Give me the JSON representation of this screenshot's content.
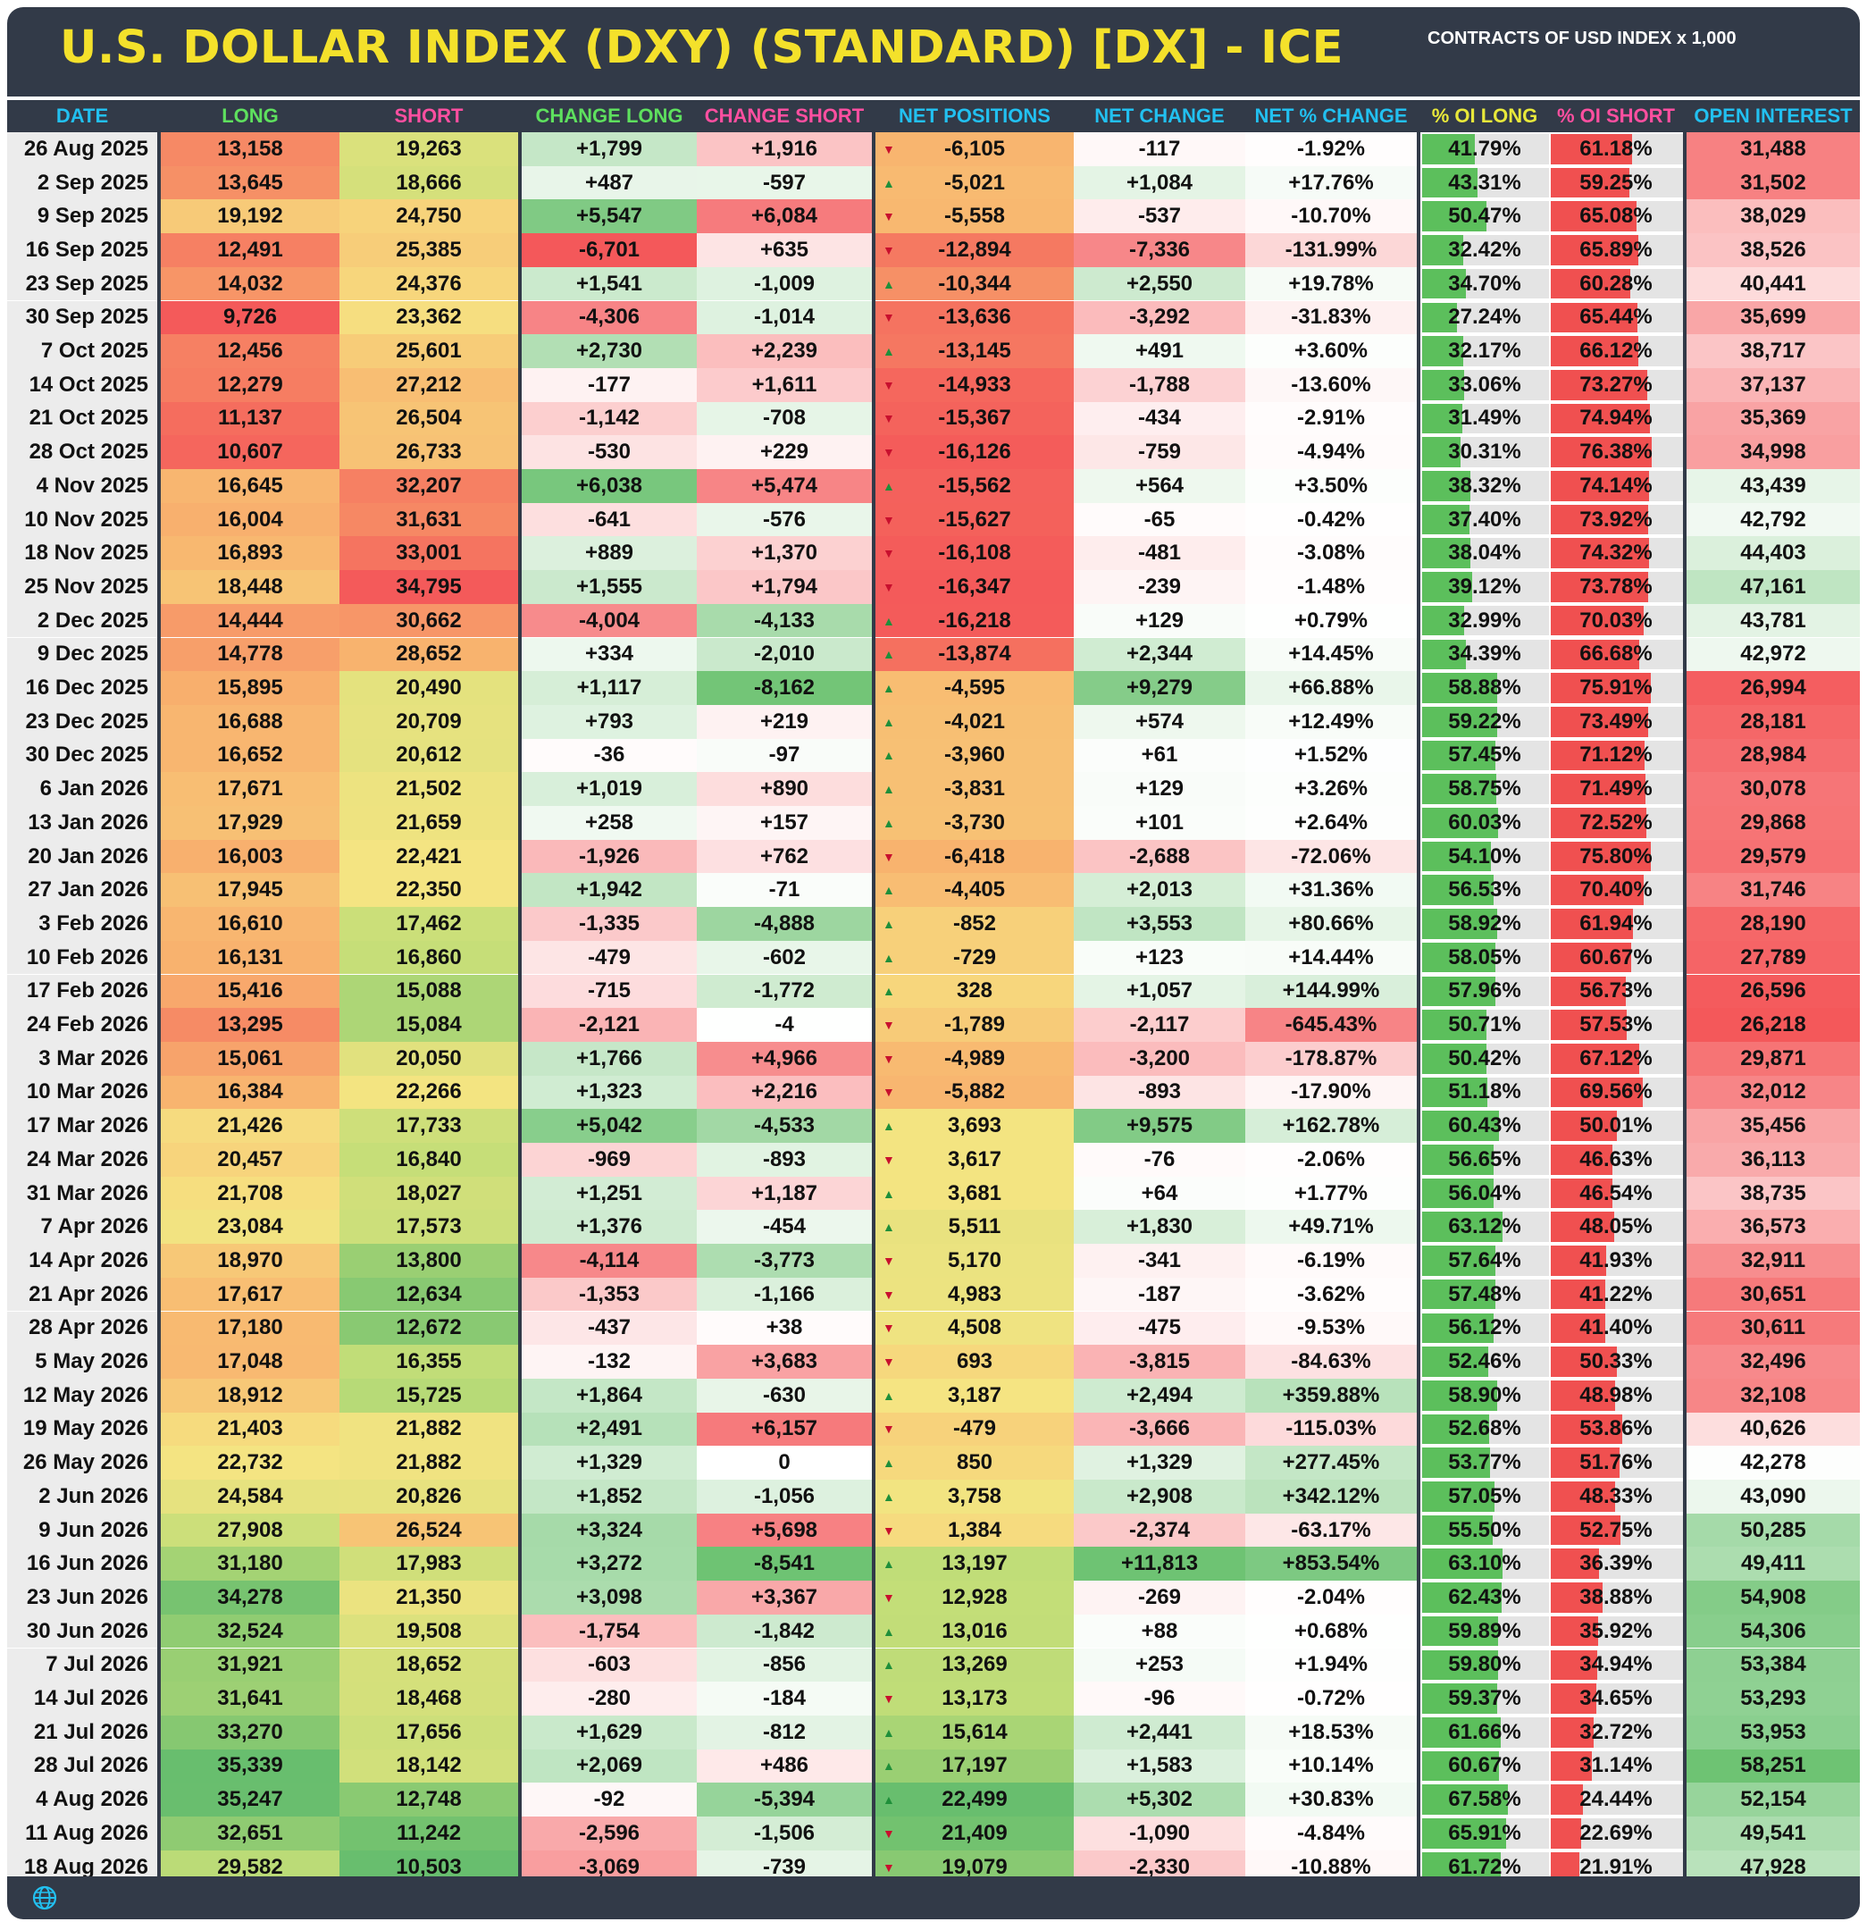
{
  "title": "U.S. DOLLAR INDEX (DXY) (STANDARD) [DX] - ICE",
  "subtitle": "CONTRACTS OF USD INDEX x 1,000",
  "headers": {
    "date": "DATE",
    "long": "LONG",
    "short": "SHORT",
    "change_long": "CHANGE LONG",
    "change_short": "CHANGE SHORT",
    "net_positions": "NET POSITIONS",
    "net_change": "NET CHANGE",
    "net_pct_change": "NET % CHANGE",
    "oi_long": "% OI LONG",
    "oi_short": "% OI SHORT",
    "open_interest": "OPEN INTEREST"
  },
  "colors": {
    "header_bg": "#323a48",
    "title": "#f4e12b",
    "header_blue": "#22c0f0",
    "header_yellow": "#e8e83a",
    "header_pink": "#ff4fa0",
    "header_green": "#5ee05e",
    "up_arrow": "#1f8f3a",
    "down_arrow": "#c8102e",
    "bar_green": "#5cbf5c",
    "bar_red": "#f05050"
  },
  "footer_icon": "globe-icon",
  "rows": [
    [
      "26 Aug 2025",
      "13,158",
      "19,263",
      "+1,799",
      "+1,916",
      "down",
      "-6,105",
      "-117",
      "-1.92%",
      "41.79%",
      "61.18%",
      "31,488"
    ],
    [
      "2 Sep 2025",
      "13,645",
      "18,666",
      "+487",
      "-597",
      "up",
      "-5,021",
      "+1,084",
      "+17.76%",
      "43.31%",
      "59.25%",
      "31,502"
    ],
    [
      "9 Sep 2025",
      "19,192",
      "24,750",
      "+5,547",
      "+6,084",
      "down",
      "-5,558",
      "-537",
      "-10.70%",
      "50.47%",
      "65.08%",
      "38,029"
    ],
    [
      "16 Sep 2025",
      "12,491",
      "25,385",
      "-6,701",
      "+635",
      "down",
      "-12,894",
      "-7,336",
      "-131.99%",
      "32.42%",
      "65.89%",
      "38,526"
    ],
    [
      "23 Sep 2025",
      "14,032",
      "24,376",
      "+1,541",
      "-1,009",
      "up",
      "-10,344",
      "+2,550",
      "+19.78%",
      "34.70%",
      "60.28%",
      "40,441"
    ],
    [
      "30 Sep 2025",
      "9,726",
      "23,362",
      "-4,306",
      "-1,014",
      "down",
      "-13,636",
      "-3,292",
      "-31.83%",
      "27.24%",
      "65.44%",
      "35,699"
    ],
    [
      "7 Oct 2025",
      "12,456",
      "25,601",
      "+2,730",
      "+2,239",
      "up",
      "-13,145",
      "+491",
      "+3.60%",
      "32.17%",
      "66.12%",
      "38,717"
    ],
    [
      "14 Oct 2025",
      "12,279",
      "27,212",
      "-177",
      "+1,611",
      "down",
      "-14,933",
      "-1,788",
      "-13.60%",
      "33.06%",
      "73.27%",
      "37,137"
    ],
    [
      "21 Oct 2025",
      "11,137",
      "26,504",
      "-1,142",
      "-708",
      "down",
      "-15,367",
      "-434",
      "-2.91%",
      "31.49%",
      "74.94%",
      "35,369"
    ],
    [
      "28 Oct 2025",
      "10,607",
      "26,733",
      "-530",
      "+229",
      "down",
      "-16,126",
      "-759",
      "-4.94%",
      "30.31%",
      "76.38%",
      "34,998"
    ],
    [
      "4 Nov 2025",
      "16,645",
      "32,207",
      "+6,038",
      "+5,474",
      "up",
      "-15,562",
      "+564",
      "+3.50%",
      "38.32%",
      "74.14%",
      "43,439"
    ],
    [
      "10 Nov 2025",
      "16,004",
      "31,631",
      "-641",
      "-576",
      "down",
      "-15,627",
      "-65",
      "-0.42%",
      "37.40%",
      "73.92%",
      "42,792"
    ],
    [
      "18 Nov 2025",
      "16,893",
      "33,001",
      "+889",
      "+1,370",
      "down",
      "-16,108",
      "-481",
      "-3.08%",
      "38.04%",
      "74.32%",
      "44,403"
    ],
    [
      "25 Nov 2025",
      "18,448",
      "34,795",
      "+1,555",
      "+1,794",
      "down",
      "-16,347",
      "-239",
      "-1.48%",
      "39.12%",
      "73.78%",
      "47,161"
    ],
    [
      "2 Dec 2025",
      "14,444",
      "30,662",
      "-4,004",
      "-4,133",
      "up",
      "-16,218",
      "+129",
      "+0.79%",
      "32.99%",
      "70.03%",
      "43,781"
    ],
    [
      "9 Dec 2025",
      "14,778",
      "28,652",
      "+334",
      "-2,010",
      "up",
      "-13,874",
      "+2,344",
      "+14.45%",
      "34.39%",
      "66.68%",
      "42,972"
    ],
    [
      "16 Dec 2025",
      "15,895",
      "20,490",
      "+1,117",
      "-8,162",
      "up",
      "-4,595",
      "+9,279",
      "+66.88%",
      "58.88%",
      "75.91%",
      "26,994"
    ],
    [
      "23 Dec 2025",
      "16,688",
      "20,709",
      "+793",
      "+219",
      "up",
      "-4,021",
      "+574",
      "+12.49%",
      "59.22%",
      "73.49%",
      "28,181"
    ],
    [
      "30 Dec 2025",
      "16,652",
      "20,612",
      "-36",
      "-97",
      "up",
      "-3,960",
      "+61",
      "+1.52%",
      "57.45%",
      "71.12%",
      "28,984"
    ],
    [
      "6 Jan 2026",
      "17,671",
      "21,502",
      "+1,019",
      "+890",
      "up",
      "-3,831",
      "+129",
      "+3.26%",
      "58.75%",
      "71.49%",
      "30,078"
    ],
    [
      "13 Jan 2026",
      "17,929",
      "21,659",
      "+258",
      "+157",
      "up",
      "-3,730",
      "+101",
      "+2.64%",
      "60.03%",
      "72.52%",
      "29,868"
    ],
    [
      "20 Jan 2026",
      "16,003",
      "22,421",
      "-1,926",
      "+762",
      "down",
      "-6,418",
      "-2,688",
      "-72.06%",
      "54.10%",
      "75.80%",
      "29,579"
    ],
    [
      "27 Jan 2026",
      "17,945",
      "22,350",
      "+1,942",
      "-71",
      "up",
      "-4,405",
      "+2,013",
      "+31.36%",
      "56.53%",
      "70.40%",
      "31,746"
    ],
    [
      "3 Feb 2026",
      "16,610",
      "17,462",
      "-1,335",
      "-4,888",
      "up",
      "-852",
      "+3,553",
      "+80.66%",
      "58.92%",
      "61.94%",
      "28,190"
    ],
    [
      "10 Feb 2026",
      "16,131",
      "16,860",
      "-479",
      "-602",
      "up",
      "-729",
      "+123",
      "+14.44%",
      "58.05%",
      "60.67%",
      "27,789"
    ],
    [
      "17 Feb 2026",
      "15,416",
      "15,088",
      "-715",
      "-1,772",
      "up",
      "328",
      "+1,057",
      "+144.99%",
      "57.96%",
      "56.73%",
      "26,596"
    ],
    [
      "24 Feb 2026",
      "13,295",
      "15,084",
      "-2,121",
      "-4",
      "down",
      "-1,789",
      "-2,117",
      "-645.43%",
      "50.71%",
      "57.53%",
      "26,218"
    ],
    [
      "3 Mar 2026",
      "15,061",
      "20,050",
      "+1,766",
      "+4,966",
      "down",
      "-4,989",
      "-3,200",
      "-178.87%",
      "50.42%",
      "67.12%",
      "29,871"
    ],
    [
      "10 Mar 2026",
      "16,384",
      "22,266",
      "+1,323",
      "+2,216",
      "down",
      "-5,882",
      "-893",
      "-17.90%",
      "51.18%",
      "69.56%",
      "32,012"
    ],
    [
      "17 Mar 2026",
      "21,426",
      "17,733",
      "+5,042",
      "-4,533",
      "up",
      "3,693",
      "+9,575",
      "+162.78%",
      "60.43%",
      "50.01%",
      "35,456"
    ],
    [
      "24 Mar 2026",
      "20,457",
      "16,840",
      "-969",
      "-893",
      "down",
      "3,617",
      "-76",
      "-2.06%",
      "56.65%",
      "46.63%",
      "36,113"
    ],
    [
      "31 Mar 2026",
      "21,708",
      "18,027",
      "+1,251",
      "+1,187",
      "up",
      "3,681",
      "+64",
      "+1.77%",
      "56.04%",
      "46.54%",
      "38,735"
    ],
    [
      "7 Apr 2026",
      "23,084",
      "17,573",
      "+1,376",
      "-454",
      "up",
      "5,511",
      "+1,830",
      "+49.71%",
      "63.12%",
      "48.05%",
      "36,573"
    ],
    [
      "14 Apr 2026",
      "18,970",
      "13,800",
      "-4,114",
      "-3,773",
      "down",
      "5,170",
      "-341",
      "-6.19%",
      "57.64%",
      "41.93%",
      "32,911"
    ],
    [
      "21 Apr 2026",
      "17,617",
      "12,634",
      "-1,353",
      "-1,166",
      "down",
      "4,983",
      "-187",
      "-3.62%",
      "57.48%",
      "41.22%",
      "30,651"
    ],
    [
      "28 Apr 2026",
      "17,180",
      "12,672",
      "-437",
      "+38",
      "down",
      "4,508",
      "-475",
      "-9.53%",
      "56.12%",
      "41.40%",
      "30,611"
    ],
    [
      "5 May 2026",
      "17,048",
      "16,355",
      "-132",
      "+3,683",
      "down",
      "693",
      "-3,815",
      "-84.63%",
      "52.46%",
      "50.33%",
      "32,496"
    ],
    [
      "12 May 2026",
      "18,912",
      "15,725",
      "+1,864",
      "-630",
      "up",
      "3,187",
      "+2,494",
      "+359.88%",
      "58.90%",
      "48.98%",
      "32,108"
    ],
    [
      "19 May 2026",
      "21,403",
      "21,882",
      "+2,491",
      "+6,157",
      "down",
      "-479",
      "-3,666",
      "-115.03%",
      "52.68%",
      "53.86%",
      "40,626"
    ],
    [
      "26 May 2026",
      "22,732",
      "21,882",
      "+1,329",
      "0",
      "up",
      "850",
      "+1,329",
      "+277.45%",
      "53.77%",
      "51.76%",
      "42,278"
    ],
    [
      "2 Jun 2026",
      "24,584",
      "20,826",
      "+1,852",
      "-1,056",
      "up",
      "3,758",
      "+2,908",
      "+342.12%",
      "57.05%",
      "48.33%",
      "43,090"
    ],
    [
      "9 Jun 2026",
      "27,908",
      "26,524",
      "+3,324",
      "+5,698",
      "down",
      "1,384",
      "-2,374",
      "-63.17%",
      "55.50%",
      "52.75%",
      "50,285"
    ],
    [
      "16 Jun 2026",
      "31,180",
      "17,983",
      "+3,272",
      "-8,541",
      "up",
      "13,197",
      "+11,813",
      "+853.54%",
      "63.10%",
      "36.39%",
      "49,411"
    ],
    [
      "23 Jun 2026",
      "34,278",
      "21,350",
      "+3,098",
      "+3,367",
      "down",
      "12,928",
      "-269",
      "-2.04%",
      "62.43%",
      "38.88%",
      "54,908"
    ],
    [
      "30 Jun 2026",
      "32,524",
      "19,508",
      "-1,754",
      "-1,842",
      "up",
      "13,016",
      "+88",
      "+0.68%",
      "59.89%",
      "35.92%",
      "54,306"
    ],
    [
      "7 Jul 2026",
      "31,921",
      "18,652",
      "-603",
      "-856",
      "up",
      "13,269",
      "+253",
      "+1.94%",
      "59.80%",
      "34.94%",
      "53,384"
    ],
    [
      "14 Jul 2026",
      "31,641",
      "18,468",
      "-280",
      "-184",
      "down",
      "13,173",
      "-96",
      "-0.72%",
      "59.37%",
      "34.65%",
      "53,293"
    ],
    [
      "21 Jul 2026",
      "33,270",
      "17,656",
      "+1,629",
      "-812",
      "up",
      "15,614",
      "+2,441",
      "+18.53%",
      "61.66%",
      "32.72%",
      "53,953"
    ],
    [
      "28 Jul 2026",
      "35,339",
      "18,142",
      "+2,069",
      "+486",
      "up",
      "17,197",
      "+1,583",
      "+10.14%",
      "60.67%",
      "31.14%",
      "58,251"
    ],
    [
      "4 Aug 2026",
      "35,247",
      "12,748",
      "-92",
      "-5,394",
      "up",
      "22,499",
      "+5,302",
      "+30.83%",
      "67.58%",
      "24.44%",
      "52,154"
    ],
    [
      "11 Aug 2026",
      "32,651",
      "11,242",
      "-2,596",
      "-1,506",
      "down",
      "21,409",
      "-1,090",
      "-4.84%",
      "65.91%",
      "22.69%",
      "49,541"
    ],
    [
      "18 Aug 2026",
      "29,582",
      "10,503",
      "-3,069",
      "-739",
      "down",
      "19,079",
      "-2,330",
      "-10.88%",
      "61.72%",
      "21.91%",
      "47,928"
    ]
  ]
}
